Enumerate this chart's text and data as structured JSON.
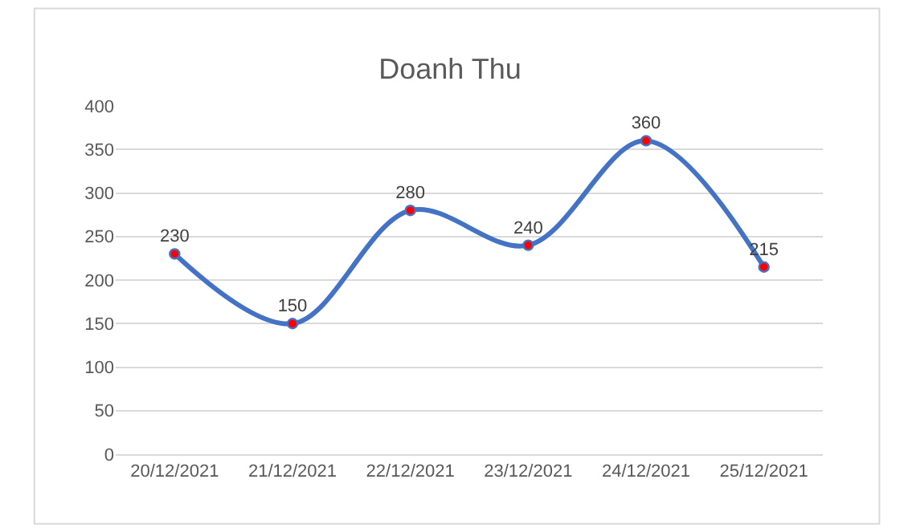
{
  "chart_data": {
    "type": "line",
    "title": "Doanh Thu",
    "categories": [
      "20/12/2021",
      "21/12/2021",
      "22/12/2021",
      "23/12/2021",
      "24/12/2021",
      "25/12/2021"
    ],
    "series": [
      {
        "color": "#4472c4",
        "colors": [
          "#ff0000",
          "#ff0000",
          "#ff0000",
          "#ff0000",
          "#ff0000",
          "#ff0000"
        ],
        "values": [
          230,
          150,
          280,
          240,
          360,
          215
        ]
      }
    ],
    "ylim": [
      0,
      400
    ],
    "yticks": [
      0,
      50,
      100,
      150,
      200,
      250,
      300,
      350,
      400
    ],
    "grid": "y",
    "legend": false,
    "marker": "circle",
    "line_style": "solid",
    "data_labels": true
  }
}
